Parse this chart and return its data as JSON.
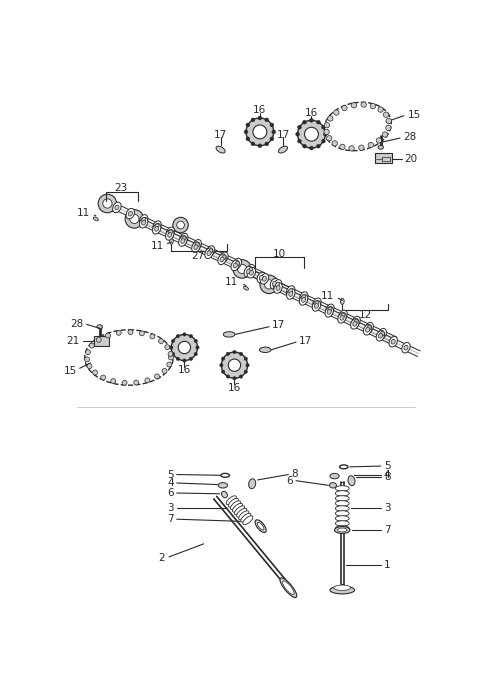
{
  "bg_color": "#ffffff",
  "line_color": "#2a2a2a",
  "gray": "#888888",
  "lightgray": "#cccccc",
  "fig_width": 4.8,
  "fig_height": 6.82,
  "dpi": 100
}
